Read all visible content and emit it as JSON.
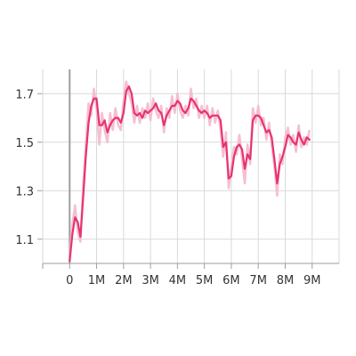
{
  "chart_data": {
    "type": "line",
    "title": "",
    "xlabel": "",
    "ylabel": "",
    "xlim": [
      -1000000,
      10000000
    ],
    "ylim": [
      1.0,
      1.8
    ],
    "x_ticks": [
      {
        "value": 0,
        "label": "0"
      },
      {
        "value": 1000000,
        "label": "1M"
      },
      {
        "value": 2000000,
        "label": "2M"
      },
      {
        "value": 3000000,
        "label": "3M"
      },
      {
        "value": 4000000,
        "label": "4M"
      },
      {
        "value": 5000000,
        "label": "5M"
      },
      {
        "value": 6000000,
        "label": "6M"
      },
      {
        "value": 7000000,
        "label": "7M"
      },
      {
        "value": 8000000,
        "label": "8M"
      },
      {
        "value": 9000000,
        "label": "9M"
      }
    ],
    "y_ticks": [
      {
        "value": 1.1,
        "label": "1.1"
      },
      {
        "value": 1.3,
        "label": "1.3"
      },
      {
        "value": 1.5,
        "label": "1.5"
      },
      {
        "value": 1.7,
        "label": "1.7"
      }
    ],
    "grid": true,
    "colors": {
      "smoothed": "#e8336f",
      "raw": "#f5b8cc"
    },
    "series": [
      {
        "role": "smoothed",
        "x": [
          0,
          100000,
          200000,
          300000,
          400000,
          500000,
          600000,
          700000,
          800000,
          900000,
          1000000,
          1100000,
          1200000,
          1300000,
          1400000,
          1500000,
          1600000,
          1700000,
          1800000,
          1900000,
          2000000,
          2100000,
          2200000,
          2300000,
          2400000,
          2500000,
          2600000,
          2700000,
          2800000,
          2900000,
          3000000,
          3100000,
          3200000,
          3300000,
          3400000,
          3500000,
          3600000,
          3700000,
          3800000,
          3900000,
          4000000,
          4100000,
          4200000,
          4300000,
          4400000,
          4500000,
          4600000,
          4700000,
          4800000,
          4900000,
          5000000,
          5100000,
          5200000,
          5300000,
          5400000,
          5500000,
          5600000,
          5700000,
          5800000,
          5900000,
          6000000,
          6100000,
          6200000,
          6300000,
          6400000,
          6500000,
          6600000,
          6700000,
          6800000,
          6900000,
          7000000,
          7100000,
          7200000,
          7300000,
          7400000,
          7500000,
          7600000,
          7700000,
          7800000,
          7900000,
          8000000,
          8100000,
          8200000,
          8300000,
          8400000,
          8500000,
          8600000,
          8700000,
          8800000,
          8900000
        ],
        "y": [
          1.01,
          1.12,
          1.19,
          1.17,
          1.11,
          1.27,
          1.44,
          1.58,
          1.65,
          1.68,
          1.68,
          1.57,
          1.57,
          1.59,
          1.54,
          1.57,
          1.59,
          1.6,
          1.6,
          1.58,
          1.62,
          1.71,
          1.73,
          1.7,
          1.62,
          1.61,
          1.62,
          1.6,
          1.63,
          1.62,
          1.63,
          1.64,
          1.66,
          1.63,
          1.62,
          1.57,
          1.61,
          1.63,
          1.65,
          1.65,
          1.67,
          1.66,
          1.63,
          1.62,
          1.64,
          1.68,
          1.67,
          1.65,
          1.63,
          1.62,
          1.63,
          1.62,
          1.6,
          1.61,
          1.61,
          1.61,
          1.59,
          1.48,
          1.5,
          1.35,
          1.36,
          1.44,
          1.48,
          1.49,
          1.47,
          1.39,
          1.45,
          1.43,
          1.59,
          1.61,
          1.61,
          1.6,
          1.57,
          1.54,
          1.55,
          1.52,
          1.43,
          1.33,
          1.41,
          1.44,
          1.48,
          1.53,
          1.52,
          1.5,
          1.49,
          1.54,
          1.51,
          1.49,
          1.52,
          1.51
        ]
      },
      {
        "role": "raw",
        "x": [
          0,
          100000,
          200000,
          300000,
          400000,
          500000,
          600000,
          700000,
          800000,
          900000,
          1000000,
          1100000,
          1200000,
          1300000,
          1400000,
          1500000,
          1600000,
          1700000,
          1800000,
          1900000,
          2000000,
          2100000,
          2200000,
          2300000,
          2400000,
          2500000,
          2600000,
          2700000,
          2800000,
          2900000,
          3000000,
          3100000,
          3200000,
          3300000,
          3400000,
          3500000,
          3600000,
          3700000,
          3800000,
          3900000,
          4000000,
          4100000,
          4200000,
          4300000,
          4400000,
          4500000,
          4600000,
          4700000,
          4800000,
          4900000,
          5000000,
          5100000,
          5200000,
          5300000,
          5400000,
          5500000,
          5600000,
          5700000,
          5800000,
          5900000,
          6000000,
          6100000,
          6200000,
          6300000,
          6400000,
          6500000,
          6600000,
          6700000,
          6800000,
          6900000,
          7000000,
          7100000,
          7200000,
          7300000,
          7400000,
          7500000,
          7600000,
          7700000,
          7800000,
          7900000,
          8000000,
          8100000,
          8200000,
          8300000,
          8400000,
          8500000,
          8600000,
          8700000,
          8800000,
          8900000
        ],
        "y": [
          1.03,
          1.16,
          1.24,
          1.13,
          1.09,
          1.32,
          1.49,
          1.66,
          1.61,
          1.72,
          1.64,
          1.49,
          1.62,
          1.55,
          1.5,
          1.62,
          1.55,
          1.64,
          1.57,
          1.55,
          1.67,
          1.75,
          1.7,
          1.66,
          1.58,
          1.65,
          1.58,
          1.64,
          1.6,
          1.66,
          1.59,
          1.68,
          1.63,
          1.6,
          1.65,
          1.54,
          1.64,
          1.6,
          1.69,
          1.62,
          1.7,
          1.63,
          1.6,
          1.65,
          1.61,
          1.72,
          1.64,
          1.68,
          1.6,
          1.65,
          1.6,
          1.65,
          1.57,
          1.64,
          1.58,
          1.63,
          1.55,
          1.44,
          1.54,
          1.31,
          1.4,
          1.48,
          1.45,
          1.53,
          1.43,
          1.33,
          1.49,
          1.41,
          1.64,
          1.58,
          1.65,
          1.57,
          1.6,
          1.51,
          1.58,
          1.49,
          1.4,
          1.28,
          1.45,
          1.41,
          1.52,
          1.56,
          1.49,
          1.53,
          1.46,
          1.57,
          1.48,
          1.52,
          1.49,
          1.55
        ]
      }
    ]
  }
}
